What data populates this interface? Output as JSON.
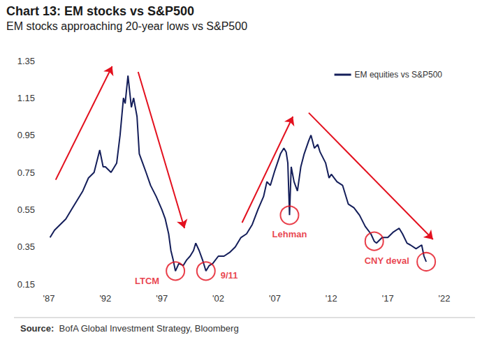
{
  "chart_data": {
    "type": "line",
    "title": "Chart 13: EM stocks vs S&P500",
    "subtitle": "EM stocks approaching 20-year lows vs S&P500",
    "source_label": "Source:",
    "source": "BofA Global Investment Strategy, Bloomberg",
    "legend": "top-right",
    "grid": false,
    "xlim": [
      1987,
      2022
    ],
    "xticks": [
      {
        "value": 1987,
        "label": "'87"
      },
      {
        "value": 1992,
        "label": "'92"
      },
      {
        "value": 1997,
        "label": "'97"
      },
      {
        "value": 2002,
        "label": "'02"
      },
      {
        "value": 2007,
        "label": "'07"
      },
      {
        "value": 2012,
        "label": "'12"
      },
      {
        "value": 2017,
        "label": "'17"
      },
      {
        "value": 2022,
        "label": "'22"
      }
    ],
    "ylim": [
      0.15,
      1.35
    ],
    "yticks": [
      0.15,
      0.35,
      0.55,
      0.75,
      0.95,
      1.15,
      1.35
    ],
    "x": [
      1987.1,
      1987.5,
      1988,
      1988.5,
      1989,
      1989.5,
      1990,
      1990.5,
      1991,
      1991.5,
      1991.8,
      1992,
      1992.5,
      1993,
      1993.3,
      1993.6,
      1993.75,
      1994,
      1994.3,
      1994.5,
      1994.8,
      1995,
      1995.3,
      1995.6,
      1996,
      1996.5,
      1997,
      1997.3,
      1997.6,
      1997.8,
      1998,
      1998.2,
      1998.5,
      1998.9,
      1999.2,
      1999.5,
      1999.8,
      2000,
      2000.3,
      2000.6,
      2000.9,
      2001.2,
      2001.5,
      2002,
      2002.5,
      2003,
      2003.5,
      2004,
      2004.5,
      2005,
      2005.5,
      2006,
      2006.3,
      2006.6,
      2007,
      2007.5,
      2007.8,
      2008,
      2008.15,
      2008.3,
      2008.45,
      2008.7,
      2009,
      2009.3,
      2009.6,
      2010,
      2010.2,
      2010.5,
      2010.8,
      2011,
      2011.5,
      2011.8,
      2012,
      2012.5,
      2013,
      2013.5,
      2014,
      2014.5,
      2015,
      2015.5,
      2015.8,
      2016,
      2016.5,
      2017,
      2017.5,
      2018,
      2018.3,
      2018.7,
      2019,
      2019.5,
      2020,
      2020.2,
      2020.4
    ],
    "series": [
      {
        "name": "EM equities vs S&P500",
        "color": "#141e5a",
        "values": [
          0.4,
          0.44,
          0.47,
          0.5,
          0.55,
          0.6,
          0.65,
          0.72,
          0.75,
          0.87,
          0.78,
          0.78,
          0.75,
          0.8,
          0.95,
          1.15,
          1.12,
          1.27,
          1.1,
          1.15,
          1.05,
          0.85,
          0.8,
          0.75,
          0.68,
          0.62,
          0.55,
          0.5,
          0.42,
          0.33,
          0.28,
          0.22,
          0.26,
          0.25,
          0.28,
          0.3,
          0.33,
          0.37,
          0.33,
          0.28,
          0.22,
          0.25,
          0.26,
          0.3,
          0.3,
          0.32,
          0.35,
          0.4,
          0.42,
          0.47,
          0.55,
          0.62,
          0.7,
          0.68,
          0.76,
          0.85,
          0.88,
          0.86,
          0.8,
          0.52,
          0.78,
          0.7,
          0.65,
          0.78,
          0.85,
          0.92,
          0.95,
          0.88,
          0.9,
          0.86,
          0.8,
          0.72,
          0.74,
          0.7,
          0.68,
          0.58,
          0.56,
          0.52,
          0.46,
          0.42,
          0.38,
          0.37,
          0.4,
          0.4,
          0.43,
          0.45,
          0.42,
          0.37,
          0.36,
          0.34,
          0.36,
          0.3,
          0.27
        ]
      }
    ],
    "highlights": [
      {
        "x": 1998.2,
        "y": 0.22,
        "label": "LTCM"
      },
      {
        "x": 2000.9,
        "y": 0.22,
        "label": "9/11"
      },
      {
        "x": 2008.3,
        "y": 0.52,
        "label": "Lehman"
      },
      {
        "x": 2015.8,
        "y": 0.38,
        "label": "CNY deval"
      },
      {
        "x": 2020.4,
        "y": 0.27
      }
    ],
    "highlight_color": "#e3101e",
    "arrows": [
      {
        "from": [
          1987.6,
          0.71
        ],
        "to": [
          1992.6,
          1.32
        ]
      },
      {
        "from": [
          1994.9,
          1.29
        ],
        "to": [
          1999.0,
          0.45
        ]
      },
      {
        "from": [
          2004.1,
          0.48
        ],
        "to": [
          2008.6,
          1.05
        ]
      },
      {
        "from": [
          2010.0,
          1.07
        ],
        "to": [
          2021.0,
          0.39
        ]
      }
    ]
  }
}
